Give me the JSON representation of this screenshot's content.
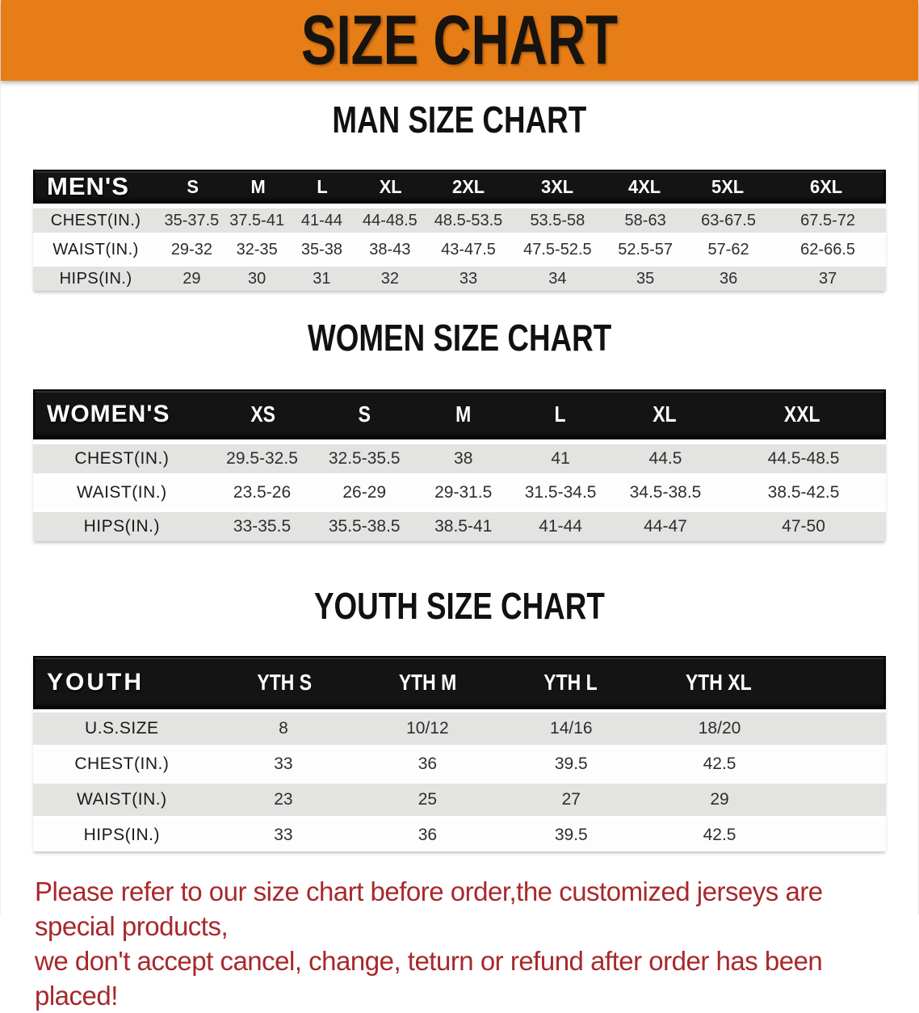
{
  "banner": {
    "title": "SIZE CHART"
  },
  "sections": [
    {
      "id": "men",
      "heading": "MAN SIZE CHART",
      "table": {
        "corner": "MEN'S",
        "columns": [
          "S",
          "M",
          "L",
          "XL",
          "2XL",
          "3XL",
          "4XL",
          "5XL",
          "6XL"
        ],
        "rows": [
          {
            "label": "CHEST(IN.)",
            "values": [
              "35-37.5",
              "37.5-41",
              "41-44",
              "44-48.5",
              "48.5-53.5",
              "53.5-58",
              "58-63",
              "63-67.5",
              "67.5-72"
            ]
          },
          {
            "label": "WAIST(IN.)",
            "values": [
              "29-32",
              "32-35",
              "35-38",
              "38-43",
              "43-47.5",
              "47.5-52.5",
              "52.5-57",
              "57-62",
              "62-66.5"
            ]
          },
          {
            "label": "HIPS(IN.)",
            "values": [
              "29",
              "30",
              "31",
              "32",
              "33",
              "34",
              "35",
              "36",
              "37"
            ]
          }
        ]
      }
    },
    {
      "id": "women",
      "heading": "WOMEN SIZE CHART",
      "table": {
        "corner": "WOMEN'S",
        "columns": [
          "XS",
          "S",
          "M",
          "L",
          "XL",
          "XXL"
        ],
        "rows": [
          {
            "label": "CHEST(IN.)",
            "values": [
              "29.5-32.5",
              "32.5-35.5",
              "38",
              "41",
              "44.5",
              "44.5-48.5"
            ]
          },
          {
            "label": "WAIST(IN.)",
            "values": [
              "23.5-26",
              "26-29",
              "29-31.5",
              "31.5-34.5",
              "34.5-38.5",
              "38.5-42.5"
            ]
          },
          {
            "label": "HIPS(IN.)",
            "values": [
              "33-35.5",
              "35.5-38.5",
              "38.5-41",
              "41-44",
              "44-47",
              "47-50"
            ]
          }
        ]
      }
    },
    {
      "id": "youth",
      "heading": "YOUTH SIZE CHART",
      "table": {
        "corner": "YOUTH",
        "columns": [
          "YTH S",
          "YTH M",
          "YTH L",
          "YTH XL"
        ],
        "rows": [
          {
            "label": "U.S.SIZE",
            "values": [
              "8",
              "10/12",
              "14/16",
              "18/20"
            ]
          },
          {
            "label": "CHEST(IN.)",
            "values": [
              "33",
              "36",
              "39.5",
              "42.5"
            ]
          },
          {
            "label": "WAIST(IN.)",
            "values": [
              "23",
              "25",
              "27",
              "29"
            ]
          },
          {
            "label": "HIPS(IN.)",
            "values": [
              "33",
              "36",
              "39.5",
              "42.5"
            ]
          }
        ]
      }
    }
  ],
  "disclaimer": {
    "line1": "Please refer to our size chart before order,the customized jerseys are special products,",
    "line2": "we don't accept cancel, change, teturn or refund after order has been placed!"
  },
  "colors": {
    "banner_orange": "#e67d17",
    "table_header_black": "#141414",
    "row_gray": "#e3e3e1",
    "disclaimer_red": "#a8282c",
    "heading_black": "#111111"
  }
}
